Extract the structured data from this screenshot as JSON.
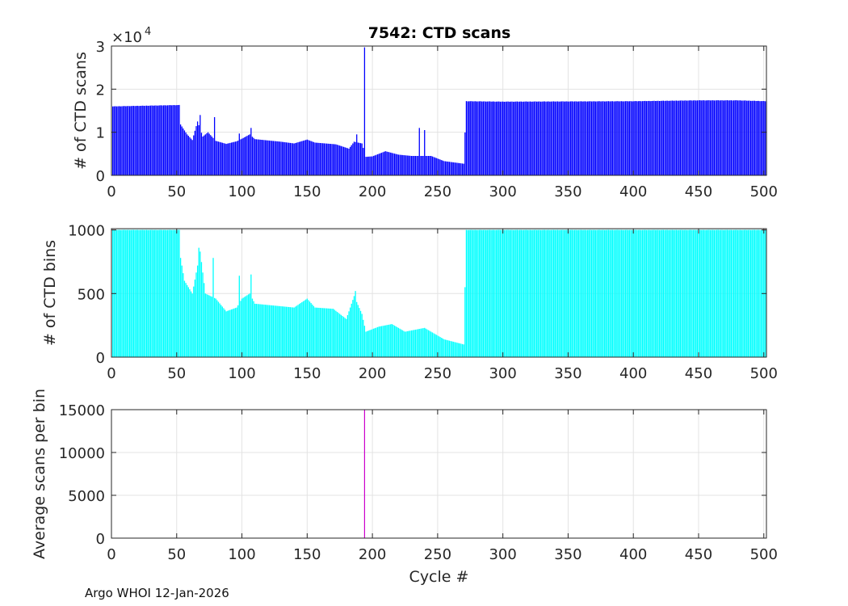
{
  "figure": {
    "title": "7542: CTD scans",
    "footer": "Argo WHOI 12-Jan-2026"
  },
  "chart_data": [
    {
      "type": "bar",
      "ylabel": "# of CTD scans",
      "y_multiplier_label": "×10",
      "y_multiplier_exponent": "4",
      "xlim": [
        0,
        502
      ],
      "ylim": [
        0,
        30000
      ],
      "xticks": [
        0,
        50,
        100,
        150,
        200,
        250,
        300,
        350,
        400,
        450,
        500
      ],
      "yticks": [
        0,
        10000,
        20000,
        30000
      ],
      "ytick_labels": [
        "0",
        "1",
        "2",
        "3"
      ],
      "grid": true,
      "color": "#0000ff",
      "profile": [
        [
          1,
          16000
        ],
        [
          50,
          16300
        ],
        [
          52,
          16300
        ],
        [
          53,
          11800
        ],
        [
          58,
          9500
        ],
        [
          62,
          8200
        ],
        [
          66,
          12500
        ],
        [
          70,
          9000
        ],
        [
          74,
          10000
        ],
        [
          80,
          8000
        ],
        [
          88,
          7300
        ],
        [
          96,
          7900
        ],
        [
          100,
          8500
        ],
        [
          106,
          9500
        ],
        [
          110,
          8400
        ],
        [
          130,
          7800
        ],
        [
          140,
          7400
        ],
        [
          150,
          8300
        ],
        [
          156,
          7600
        ],
        [
          172,
          7200
        ],
        [
          182,
          6200
        ],
        [
          186,
          7800
        ],
        [
          192,
          7400
        ],
        [
          195,
          4300
        ],
        [
          200,
          4400
        ],
        [
          210,
          5600
        ],
        [
          220,
          4800
        ],
        [
          230,
          4500
        ],
        [
          245,
          4500
        ],
        [
          255,
          3300
        ],
        [
          270,
          2700
        ],
        [
          272,
          17200
        ],
        [
          300,
          17100
        ],
        [
          400,
          17200
        ],
        [
          450,
          17400
        ],
        [
          480,
          17400
        ],
        [
          502,
          17200
        ]
      ],
      "spikes": [
        [
          68,
          14000
        ],
        [
          79,
          13500
        ],
        [
          98,
          9700
        ],
        [
          107,
          11000
        ],
        [
          188,
          9500
        ],
        [
          194,
          29700
        ],
        [
          236,
          11000
        ],
        [
          240,
          10500
        ]
      ]
    },
    {
      "type": "bar",
      "ylabel": "# of CTD bins",
      "xlim": [
        0,
        502
      ],
      "ylim": [
        0,
        1010
      ],
      "xticks": [
        0,
        50,
        100,
        150,
        200,
        250,
        300,
        350,
        400,
        450,
        500
      ],
      "yticks": [
        0,
        500,
        1000
      ],
      "ytick_labels": [
        "0",
        "500",
        "1000"
      ],
      "grid": true,
      "color": "#00ffff",
      "profile": [
        [
          1,
          1000
        ],
        [
          52,
          1000
        ],
        [
          53,
          780
        ],
        [
          56,
          600
        ],
        [
          62,
          500
        ],
        [
          68,
          830
        ],
        [
          72,
          500
        ],
        [
          80,
          460
        ],
        [
          88,
          360
        ],
        [
          96,
          390
        ],
        [
          100,
          460
        ],
        [
          106,
          500
        ],
        [
          110,
          420
        ],
        [
          130,
          400
        ],
        [
          140,
          390
        ],
        [
          150,
          460
        ],
        [
          156,
          390
        ],
        [
          170,
          380
        ],
        [
          180,
          300
        ],
        [
          186,
          480
        ],
        [
          192,
          340
        ],
        [
          195,
          200
        ],
        [
          205,
          240
        ],
        [
          215,
          260
        ],
        [
          225,
          200
        ],
        [
          240,
          230
        ],
        [
          255,
          140
        ],
        [
          270,
          100
        ],
        [
          272,
          1000
        ],
        [
          502,
          1000
        ]
      ],
      "spikes": [
        [
          67,
          860
        ],
        [
          78,
          780
        ],
        [
          98,
          640
        ],
        [
          107,
          650
        ],
        [
          187,
          520
        ]
      ]
    },
    {
      "type": "line",
      "ylabel": "Average scans per bin",
      "xlabel": "Cycle #",
      "xlim": [
        0,
        502
      ],
      "ylim": [
        0,
        15000
      ],
      "xticks": [
        0,
        50,
        100,
        150,
        200,
        250,
        300,
        350,
        400,
        450,
        500
      ],
      "yticks": [
        0,
        5000,
        10000,
        15000
      ],
      "ytick_labels": [
        "0",
        "5000",
        "10000",
        "15000"
      ],
      "grid": true,
      "color": "#cc00cc",
      "series": [
        {
          "x": [
            194,
            194
          ],
          "y": [
            0,
            15000
          ]
        }
      ]
    }
  ]
}
